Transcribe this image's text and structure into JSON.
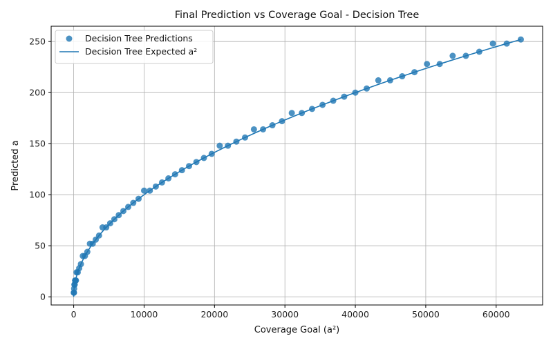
{
  "chart_data": {
    "type": "scatter",
    "title": "Final Prediction vs Coverage Goal - Decision Tree",
    "xlabel": "Coverage Goal (a²)",
    "ylabel": "Predicted a",
    "xlim": [
      -3200,
      66600
    ],
    "ylim": [
      -8,
      265
    ],
    "xticks": [
      0,
      10000,
      20000,
      30000,
      40000,
      50000,
      60000
    ],
    "xtick_labels": [
      "0",
      "10000",
      "20000",
      "30000",
      "40000",
      "50000",
      "60000"
    ],
    "yticks": [
      0,
      50,
      100,
      150,
      200,
      250
    ],
    "ytick_labels": [
      "0",
      "50",
      "100",
      "150",
      "200",
      "250"
    ],
    "grid": true,
    "legend_position": "top-left",
    "colors": {
      "predictions": "#1f77b4",
      "expected": "#1f77b4",
      "grid": "#b0b0b0"
    },
    "series": [
      {
        "name": "Decision Tree Predictions",
        "kind": "scatter",
        "points": [
          [
            16,
            4
          ],
          [
            36,
            4
          ],
          [
            64,
            8
          ],
          [
            100,
            12
          ],
          [
            144,
            12
          ],
          [
            196,
            16
          ],
          [
            256,
            16
          ],
          [
            324,
            16
          ],
          [
            400,
            24
          ],
          [
            576,
            24
          ],
          [
            784,
            28
          ],
          [
            1024,
            32
          ],
          [
            1296,
            40
          ],
          [
            1600,
            40
          ],
          [
            1936,
            44
          ],
          [
            2304,
            52
          ],
          [
            2704,
            52
          ],
          [
            3136,
            56
          ],
          [
            3600,
            60
          ],
          [
            4096,
            68
          ],
          [
            4624,
            68
          ],
          [
            5184,
            72
          ],
          [
            5776,
            76
          ],
          [
            6400,
            80
          ],
          [
            7056,
            84
          ],
          [
            7744,
            88
          ],
          [
            8464,
            92
          ],
          [
            9216,
            96
          ],
          [
            10000,
            104
          ],
          [
            10816,
            104
          ],
          [
            11664,
            108
          ],
          [
            12544,
            112
          ],
          [
            13456,
            116
          ],
          [
            14400,
            120
          ],
          [
            15376,
            124
          ],
          [
            16384,
            128
          ],
          [
            17424,
            132
          ],
          [
            18496,
            136
          ],
          [
            19600,
            140
          ],
          [
            20736,
            148
          ],
          [
            21904,
            148
          ],
          [
            23104,
            152
          ],
          [
            24336,
            156
          ],
          [
            25600,
            164
          ],
          [
            26896,
            164
          ],
          [
            28224,
            168
          ],
          [
            29584,
            172
          ],
          [
            30976,
            180
          ],
          [
            32400,
            180
          ],
          [
            33856,
            184
          ],
          [
            35344,
            188
          ],
          [
            36864,
            192
          ],
          [
            38416,
            196
          ],
          [
            40000,
            200
          ],
          [
            41616,
            204
          ],
          [
            43264,
            212
          ],
          [
            44944,
            212
          ],
          [
            46656,
            216
          ],
          [
            48400,
            220
          ],
          [
            50176,
            228
          ],
          [
            51984,
            228
          ],
          [
            53824,
            236
          ],
          [
            55696,
            236
          ],
          [
            57600,
            240
          ],
          [
            59536,
            248
          ],
          [
            61504,
            248
          ],
          [
            63504,
            252
          ]
        ]
      },
      {
        "name": "Decision Tree Expected a²",
        "kind": "line",
        "relation": "y = sqrt(x)",
        "x_range": [
          0,
          63504
        ]
      }
    ]
  }
}
